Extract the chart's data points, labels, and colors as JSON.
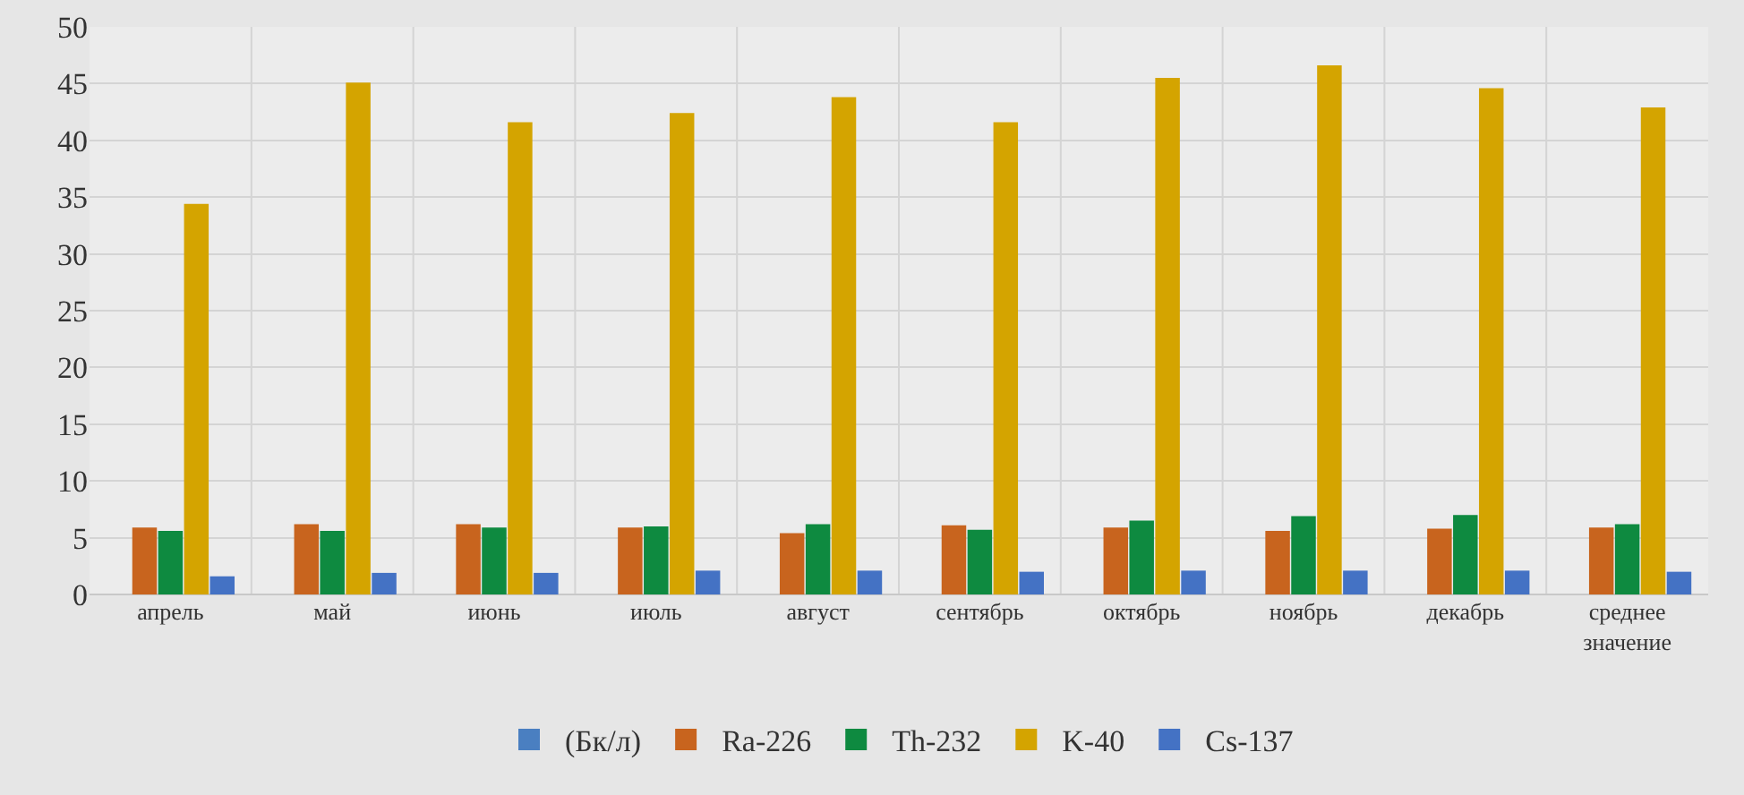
{
  "chart_data": {
    "type": "bar",
    "categories": [
      "апрель",
      "май",
      "июнь",
      "июль",
      "август",
      "сентябрь",
      "октябрь",
      "ноябрь",
      "декабрь",
      "среднее значение"
    ],
    "series": [
      {
        "name": "(Бк/л)",
        "color": "#4a7fc1",
        "values": [
          null,
          null,
          null,
          null,
          null,
          null,
          null,
          null,
          null,
          null
        ]
      },
      {
        "name": "Ra-226",
        "color": "#c8641e",
        "values": [
          5.9,
          6.2,
          6.2,
          5.9,
          5.4,
          6.1,
          5.9,
          5.6,
          5.8,
          5.9
        ]
      },
      {
        "name": "Th-232",
        "color": "#0e8a40",
        "values": [
          5.6,
          5.6,
          5.9,
          6.0,
          6.2,
          5.7,
          6.5,
          6.9,
          7.0,
          6.2
        ]
      },
      {
        "name": "K-40",
        "color": "#d4a400",
        "values": [
          34.4,
          45.1,
          41.6,
          42.4,
          43.8,
          41.6,
          45.5,
          46.6,
          44.6,
          42.9
        ]
      },
      {
        "name": "Cs-137",
        "color": "#4472c4",
        "values": [
          1.6,
          1.9,
          1.9,
          2.1,
          2.1,
          2.0,
          2.1,
          2.1,
          2.1,
          2.0
        ]
      }
    ],
    "ylim": [
      0,
      50
    ],
    "yticks": [
      0,
      5,
      10,
      15,
      20,
      25,
      30,
      35,
      40,
      45,
      50
    ],
    "grid": true,
    "legend": "bottom"
  }
}
